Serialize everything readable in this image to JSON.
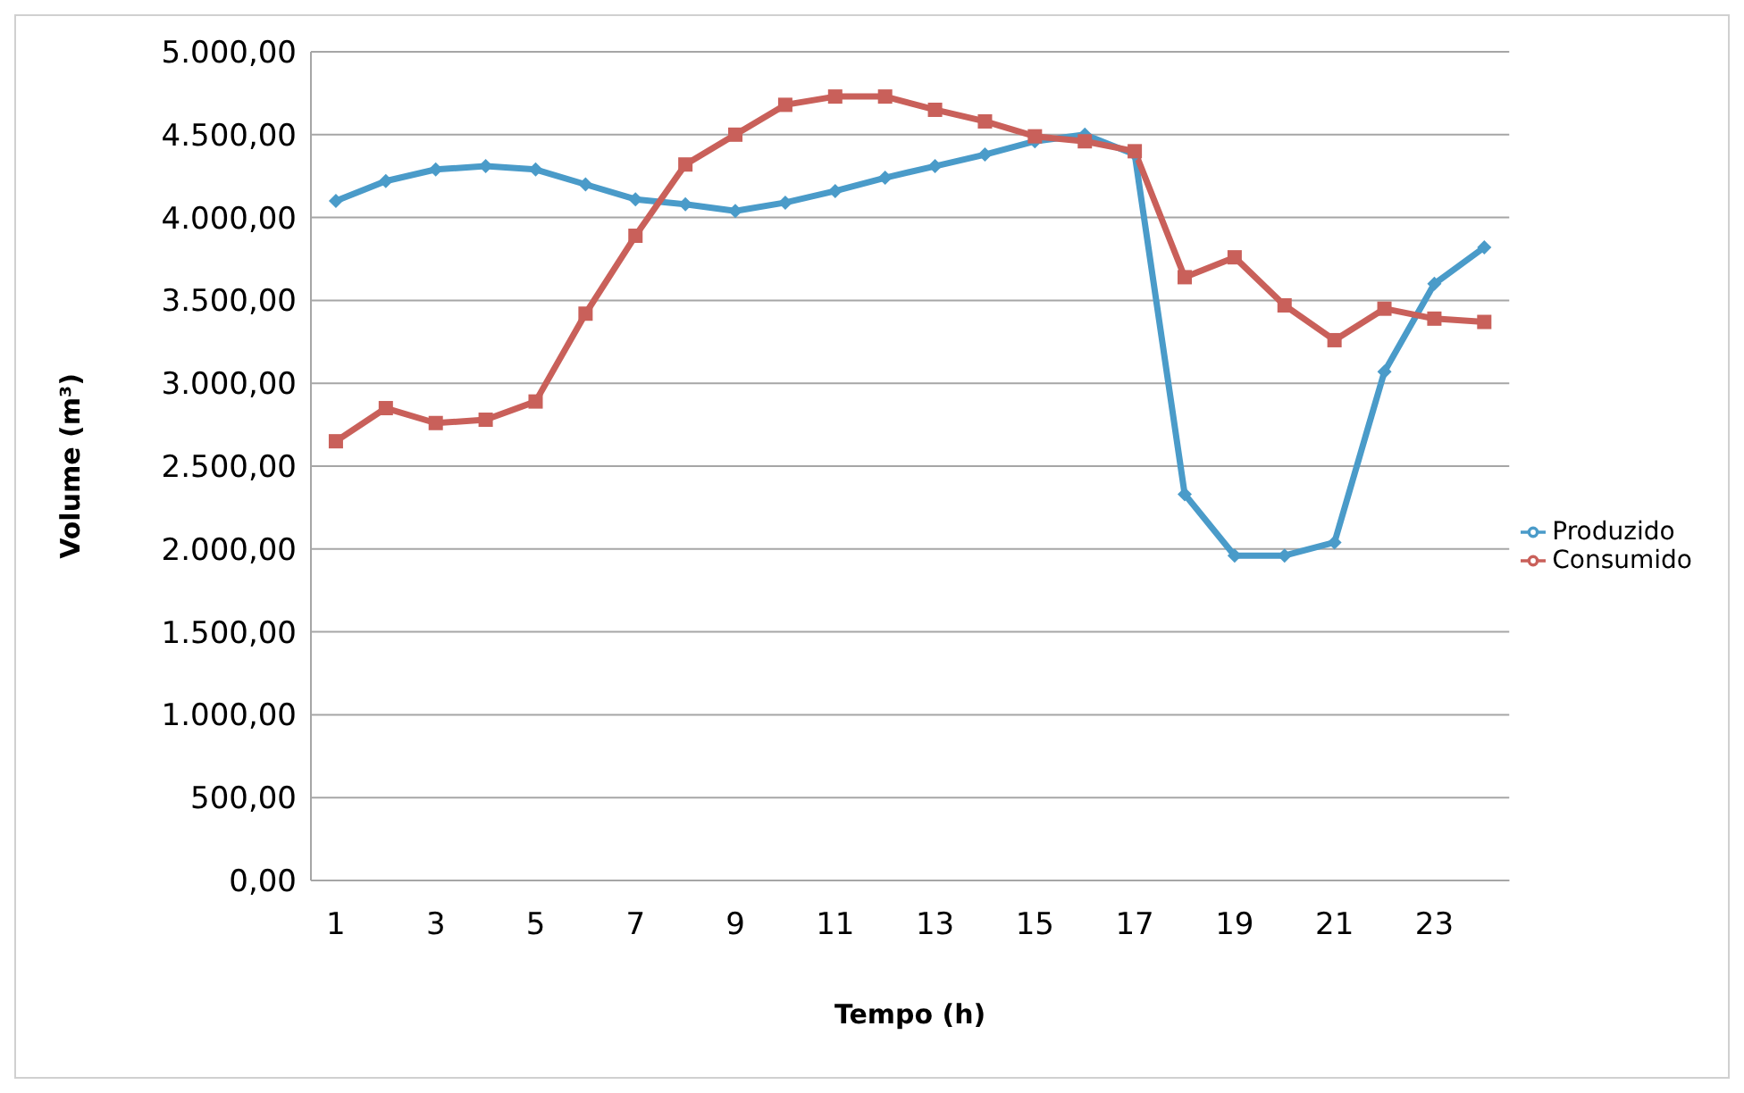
{
  "chart_data": {
    "type": "line",
    "xlabel": "Tempo (h)",
    "ylabel": "Volume (m³)",
    "x": [
      1,
      2,
      3,
      4,
      5,
      6,
      7,
      8,
      9,
      10,
      11,
      12,
      13,
      14,
      15,
      16,
      17,
      18,
      19,
      20,
      21,
      22,
      23,
      24
    ],
    "xlim": [
      0.5,
      24.5
    ],
    "xticks": [
      1,
      3,
      5,
      7,
      9,
      11,
      13,
      15,
      17,
      19,
      21,
      23
    ],
    "series": [
      {
        "name": "Produzido",
        "color": "#4a9bc9",
        "marker": "diamond",
        "values": [
          4100,
          4220,
          4290,
          4310,
          4290,
          4200,
          4110,
          4080,
          4040,
          4090,
          4160,
          4240,
          4310,
          4380,
          4460,
          4500,
          4380,
          2330,
          1960,
          1960,
          2040,
          3070,
          3600,
          3820
        ]
      },
      {
        "name": "Consumido",
        "color": "#c9605a",
        "marker": "square",
        "values": [
          2650,
          2850,
          2760,
          2780,
          2890,
          3420,
          3890,
          4320,
          4500,
          4680,
          4730,
          4730,
          4650,
          4580,
          4490,
          4460,
          4400,
          3640,
          3760,
          3470,
          3260,
          3450,
          3390,
          3370
        ]
      }
    ],
    "ylim": [
      0,
      5000
    ],
    "yticks": [
      {
        "value": 0,
        "label": "0,00"
      },
      {
        "value": 500,
        "label": "500,00"
      },
      {
        "value": 1000,
        "label": "1.000,00"
      },
      {
        "value": 1500,
        "label": "1.500,00"
      },
      {
        "value": 2000,
        "label": "2.000,00"
      },
      {
        "value": 2500,
        "label": "2.500,00"
      },
      {
        "value": 3000,
        "label": "3.000,00"
      },
      {
        "value": 3500,
        "label": "3.500,00"
      },
      {
        "value": 4000,
        "label": "4.000,00"
      },
      {
        "value": 4500,
        "label": "4.500,00"
      },
      {
        "value": 5000,
        "label": "5.000,00"
      }
    ],
    "grid": "y",
    "legend": "right",
    "line_style": "solid"
  }
}
